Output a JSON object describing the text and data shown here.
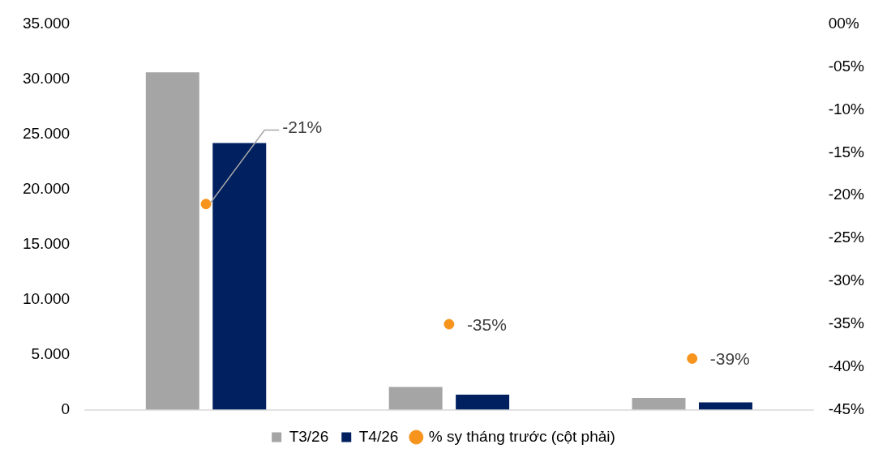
{
  "chart_data": {
    "type": "bar",
    "categories": [
      null,
      null,
      null
    ],
    "series": [
      {
        "name": "T3/26",
        "color": "#a5a5a5",
        "values": [
          30600,
          2100,
          1100
        ]
      },
      {
        "name": "T4/26",
        "color": "#002060",
        "values": [
          24200,
          1400,
          700
        ]
      },
      {
        "name": "% sy tháng trước (cột phải)",
        "type": "scatter",
        "axis": "y2",
        "color": "#f7941d",
        "values": [
          -21,
          -35,
          -39
        ],
        "value_labels": [
          "-21%",
          "-35%",
          "-39%"
        ]
      }
    ],
    "ylim": [
      0,
      35000
    ],
    "yticks": [
      {
        "value": 0,
        "label": "0"
      },
      {
        "value": 5000,
        "label": "5.000"
      },
      {
        "value": 10000,
        "label": "10.000"
      },
      {
        "value": 15000,
        "label": "15.000"
      },
      {
        "value": 20000,
        "label": "20.000"
      },
      {
        "value": 25000,
        "label": "25.000"
      },
      {
        "value": 30000,
        "label": "30.000"
      },
      {
        "value": 35000,
        "label": "35.000"
      }
    ],
    "y2lim": [
      -45,
      0
    ],
    "y2ticks": [
      {
        "value": 0,
        "label": "00%"
      },
      {
        "value": -5,
        "label": "-05%"
      },
      {
        "value": -10,
        "label": "-10%"
      },
      {
        "value": -15,
        "label": "-15%"
      },
      {
        "value": -20,
        "label": "-20%"
      },
      {
        "value": -25,
        "label": "-25%"
      },
      {
        "value": -30,
        "label": "-30%"
      },
      {
        "value": -35,
        "label": "-35%"
      },
      {
        "value": -40,
        "label": "-40%"
      },
      {
        "value": -45,
        "label": "-45%"
      }
    ],
    "grid": false,
    "legend": "bottom",
    "marker": "circle"
  }
}
